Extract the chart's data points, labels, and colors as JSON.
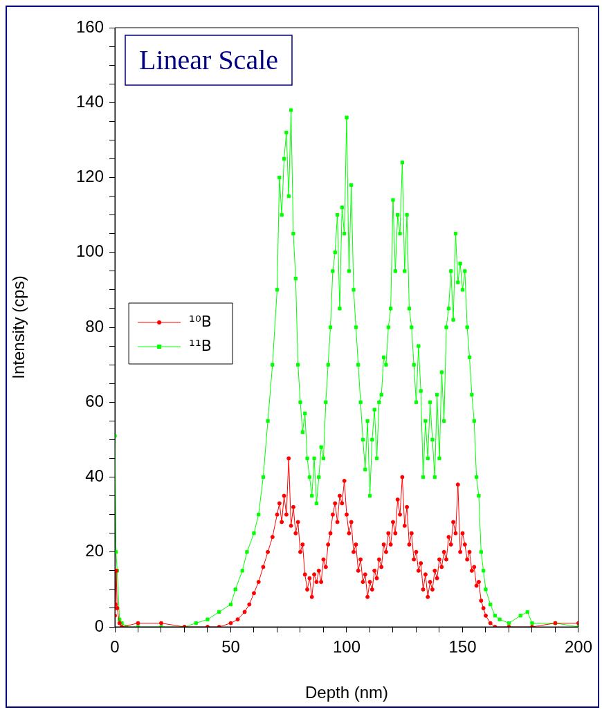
{
  "chart_data": {
    "type": "line",
    "title": "Linear Scale",
    "xlabel": "Depth (nm)",
    "ylabel": "Intensity (cps)",
    "xlim": [
      0,
      200
    ],
    "ylim": [
      0,
      160
    ],
    "xticks": [
      0,
      {
        "value": 10,
        "label": null
      },
      {
        "value": 20,
        "label": null
      },
      {
        "value": 30,
        "label": null
      },
      {
        "value": 40,
        "label": null
      },
      50,
      {
        "value": 60,
        "label": null
      },
      {
        "value": 70,
        "label": null
      },
      {
        "value": 80,
        "label": null
      },
      {
        "value": 90,
        "label": null
      },
      100,
      {
        "value": 110,
        "label": null
      },
      {
        "value": 120,
        "label": null
      },
      {
        "value": 130,
        "label": null
      },
      {
        "value": 140,
        "label": null
      },
      150,
      {
        "value": 160,
        "label": null
      },
      {
        "value": 170,
        "label": null
      },
      {
        "value": 180,
        "label": null
      },
      {
        "value": 190,
        "label": null
      },
      200
    ],
    "yticks": [
      0,
      {
        "value": 5,
        "label": null
      },
      {
        "value": 10,
        "label": null
      },
      {
        "value": 15,
        "label": null
      },
      20,
      {
        "value": 25,
        "label": null
      },
      {
        "value": 30,
        "label": null
      },
      {
        "value": 35,
        "label": null
      },
      40,
      {
        "value": 45,
        "label": null
      },
      {
        "value": 50,
        "label": null
      },
      {
        "value": 55,
        "label": null
      },
      60,
      {
        "value": 65,
        "label": null
      },
      {
        "value": 70,
        "label": null
      },
      {
        "value": 75,
        "label": null
      },
      80,
      {
        "value": 85,
        "label": null
      },
      {
        "value": 90,
        "label": null
      },
      {
        "value": 95,
        "label": null
      },
      100,
      {
        "value": 105,
        "label": null
      },
      {
        "value": 110,
        "label": null
      },
      {
        "value": 115,
        "label": null
      },
      120,
      {
        "value": 125,
        "label": null
      },
      {
        "value": 130,
        "label": null
      },
      {
        "value": 135,
        "label": null
      },
      140,
      {
        "value": 145,
        "label": null
      },
      {
        "value": 150,
        "label": null
      },
      {
        "value": 155,
        "label": null
      },
      160
    ],
    "grid": false,
    "legend": "left",
    "line_style": "solid",
    "series": [
      {
        "name": "¹⁰B",
        "color": "#ff0000",
        "marker": "circle",
        "x": [
          0,
          0.3,
          0.6,
          1,
          2,
          3,
          10,
          20,
          30,
          40,
          45,
          50,
          53,
          56,
          58,
          60,
          62,
          64,
          66,
          68,
          70,
          71,
          72,
          73,
          74,
          75,
          76,
          77,
          78,
          79,
          80,
          81,
          82,
          83,
          84,
          85,
          86,
          87,
          88,
          89,
          90,
          91,
          92,
          93,
          94,
          95,
          96,
          97,
          98,
          99,
          100,
          101,
          102,
          103,
          104,
          105,
          106,
          107,
          108,
          109,
          110,
          111,
          112,
          113,
          114,
          115,
          116,
          117,
          118,
          119,
          120,
          121,
          122,
          123,
          124,
          125,
          126,
          127,
          128,
          129,
          130,
          131,
          132,
          133,
          134,
          135,
          136,
          137,
          138,
          139,
          140,
          141,
          142,
          143,
          144,
          145,
          146,
          147,
          148,
          149,
          150,
          151,
          152,
          153,
          154,
          155,
          156,
          157,
          158,
          159,
          160,
          162,
          164,
          170,
          180,
          190,
          200
        ],
        "values": [
          3,
          6,
          15,
          5,
          1,
          0,
          1,
          1,
          0,
          0,
          0,
          1,
          2,
          4,
          6,
          9,
          12,
          16,
          20,
          24,
          30,
          33,
          28,
          35,
          30,
          45,
          27,
          32,
          25,
          28,
          20,
          22,
          14,
          10,
          13,
          8,
          14,
          12,
          15,
          12,
          18,
          16,
          22,
          25,
          30,
          33,
          28,
          35,
          33,
          39,
          30,
          25,
          28,
          20,
          22,
          15,
          18,
          12,
          14,
          8,
          12,
          10,
          15,
          13,
          18,
          16,
          22,
          20,
          25,
          22,
          28,
          25,
          34,
          30,
          40,
          27,
          32,
          22,
          25,
          18,
          20,
          15,
          17,
          10,
          14,
          8,
          12,
          10,
          15,
          13,
          18,
          16,
          20,
          18,
          24,
          22,
          28,
          25,
          38,
          20,
          25,
          22,
          18,
          20,
          15,
          16,
          11,
          12,
          7,
          5,
          3,
          1,
          0,
          0,
          0,
          1,
          1
        ]
      },
      {
        "name": "¹¹B",
        "color": "#00ff00",
        "marker": "square",
        "x": [
          0,
          0.5,
          1,
          2,
          3,
          5,
          10,
          20,
          30,
          35,
          40,
          45,
          50,
          52,
          55,
          57,
          60,
          62,
          64,
          66,
          68,
          70,
          71,
          72,
          73,
          74,
          75,
          76,
          77,
          78,
          79,
          80,
          81,
          82,
          83,
          84,
          85,
          86,
          87,
          88,
          89,
          90,
          91,
          92,
          93,
          94,
          95,
          96,
          97,
          98,
          99,
          100,
          101,
          102,
          103,
          104,
          105,
          106,
          107,
          108,
          109,
          110,
          111,
          112,
          113,
          114,
          115,
          116,
          117,
          118,
          119,
          120,
          121,
          122,
          123,
          124,
          125,
          126,
          127,
          128,
          129,
          130,
          131,
          132,
          133,
          134,
          135,
          136,
          137,
          138,
          139,
          140,
          141,
          142,
          143,
          144,
          145,
          146,
          147,
          148,
          149,
          150,
          151,
          152,
          153,
          154,
          155,
          156,
          157,
          158,
          159,
          160,
          162,
          164,
          166,
          170,
          175,
          178,
          180,
          190,
          200
        ],
        "values": [
          51,
          20,
          15,
          2,
          1,
          0,
          0,
          0,
          0,
          1,
          2,
          4,
          6,
          10,
          15,
          20,
          25,
          30,
          40,
          55,
          70,
          90,
          120,
          110,
          125,
          132,
          115,
          138,
          105,
          93,
          70,
          60,
          52,
          57,
          45,
          40,
          35,
          45,
          33,
          40,
          48,
          45,
          60,
          70,
          80,
          95,
          100,
          110,
          85,
          112,
          105,
          136,
          95,
          118,
          90,
          80,
          70,
          60,
          50,
          42,
          55,
          35,
          50,
          58,
          45,
          60,
          62,
          72,
          70,
          80,
          85,
          114,
          95,
          110,
          105,
          124,
          95,
          110,
          85,
          80,
          70,
          60,
          75,
          63,
          40,
          55,
          45,
          60,
          50,
          40,
          62,
          45,
          68,
          55,
          80,
          85,
          95,
          82,
          105,
          92,
          97,
          90,
          95,
          80,
          72,
          62,
          55,
          40,
          35,
          20,
          15,
          10,
          6,
          3,
          2,
          1,
          3,
          4,
          1,
          1,
          0
        ]
      }
    ]
  }
}
